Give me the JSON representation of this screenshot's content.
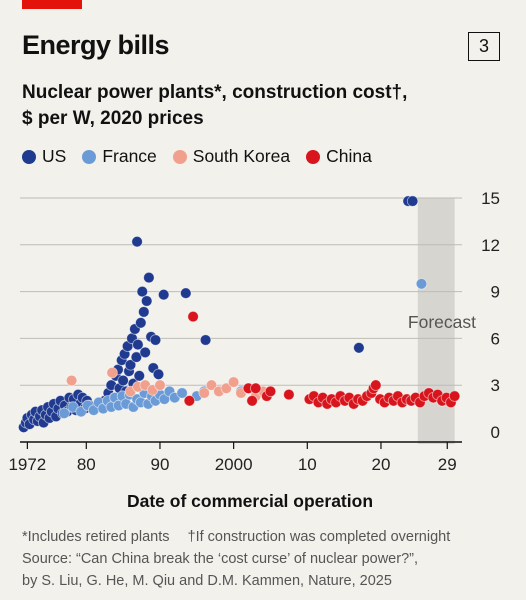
{
  "header": {
    "title": "Energy bills",
    "badge": "3",
    "subtitle_line1": "Nuclear power plants*, construction cost†,",
    "subtitle_line2": "$ per W, 2020 prices"
  },
  "colors": {
    "accent_red": "#e3120b",
    "US": "#1f3a8f",
    "France": "#6b9bd6",
    "South Korea": "#f0a08c",
    "China": "#d8151c",
    "forecast_band": "#d6d5d0"
  },
  "footer": {
    "note1": "*Includes retired plants",
    "note2": "†If construction was completed overnight",
    "source1": "Source: “Can China break the ‘cost curse’ of nuclear power?”,",
    "source2": "by S. Liu, G. He, M. Qiu and D.M. Kammen, Nature, 2025"
  },
  "chart_data": {
    "type": "scatter",
    "title": "Nuclear power plants*, construction cost†, $ per W, 2020 prices",
    "xlabel": "Date of commercial operation",
    "ylabel": "",
    "xlim": [
      1971,
      2031
    ],
    "ylim": [
      0,
      15
    ],
    "x_ticks": [
      1972,
      1980,
      1990,
      2000,
      2010,
      2020,
      2029
    ],
    "x_tick_labels": [
      "1972",
      "80",
      "90",
      "2000",
      "10",
      "20",
      "29"
    ],
    "y_ticks": [
      0,
      3,
      6,
      9,
      12,
      15
    ],
    "y_tick_labels": [
      "0",
      "3",
      "6",
      "9",
      "12",
      "15"
    ],
    "grid": "horizontal",
    "legend_position": "top",
    "annotations": [
      {
        "text": "Forecast",
        "x_range": [
          2025,
          2030
        ]
      }
    ],
    "series": [
      {
        "name": "US",
        "points": [
          [
            1971.5,
            0.3
          ],
          [
            1971.8,
            0.6
          ],
          [
            1972.0,
            0.9
          ],
          [
            1972.3,
            0.5
          ],
          [
            1972.6,
            1.1
          ],
          [
            1972.9,
            0.8
          ],
          [
            1973.1,
            1.3
          ],
          [
            1973.4,
            0.7
          ],
          [
            1973.7,
            1.0
          ],
          [
            1974.0,
            1.4
          ],
          [
            1974.2,
            0.6
          ],
          [
            1974.5,
            1.1
          ],
          [
            1974.8,
            1.6
          ],
          [
            1975.0,
            0.9
          ],
          [
            1975.3,
            1.3
          ],
          [
            1975.6,
            1.8
          ],
          [
            1975.9,
            1.0
          ],
          [
            1976.2,
            1.5
          ],
          [
            1976.5,
            2.0
          ],
          [
            1976.8,
            1.2
          ],
          [
            1977.1,
            1.7
          ],
          [
            1977.4,
            1.3
          ],
          [
            1977.7,
            2.2
          ],
          [
            1978.0,
            1.6
          ],
          [
            1978.3,
            2.1
          ],
          [
            1978.6,
            1.4
          ],
          [
            1978.9,
            2.4
          ],
          [
            1979.2,
            1.8
          ],
          [
            1979.5,
            2.2
          ],
          [
            1979.8,
            1.5
          ],
          [
            1980.1,
            2.0
          ],
          [
            1980.4,
            1.7
          ],
          [
            1982.5,
            2.0
          ],
          [
            1983.0,
            2.5
          ],
          [
            1983.4,
            3.0
          ],
          [
            1983.8,
            2.2
          ],
          [
            1984.0,
            3.6
          ],
          [
            1984.3,
            4.0
          ],
          [
            1984.5,
            2.8
          ],
          [
            1984.8,
            4.6
          ],
          [
            1985.0,
            3.3
          ],
          [
            1985.2,
            5.0
          ],
          [
            1985.4,
            2.6
          ],
          [
            1985.6,
            5.5
          ],
          [
            1985.8,
            3.9
          ],
          [
            1986.0,
            4.3
          ],
          [
            1986.2,
            6.0
          ],
          [
            1986.4,
            3.1
          ],
          [
            1986.6,
            6.6
          ],
          [
            1986.8,
            4.8
          ],
          [
            1987.0,
            5.6
          ],
          [
            1987.2,
            3.6
          ],
          [
            1987.4,
            7.0
          ],
          [
            1987.6,
            9.0
          ],
          [
            1987.8,
            7.7
          ],
          [
            1988.0,
            5.1
          ],
          [
            1988.2,
            8.4
          ],
          [
            1988.5,
            9.9
          ],
          [
            1988.8,
            6.1
          ],
          [
            1989.1,
            4.1
          ],
          [
            1989.4,
            5.9
          ],
          [
            1989.8,
            3.7
          ],
          [
            1986.9,
            12.2
          ],
          [
            1990.5,
            8.8
          ],
          [
            1993.5,
            8.9
          ],
          [
            1996.2,
            5.9
          ],
          [
            2017.0,
            5.4
          ],
          [
            2023.7,
            14.8
          ],
          [
            2024.3,
            14.8
          ]
        ]
      },
      {
        "name": "France",
        "points": [
          [
            1977.0,
            1.2
          ],
          [
            1978.2,
            1.6
          ],
          [
            1979.3,
            1.3
          ],
          [
            1980.2,
            1.7
          ],
          [
            1981.0,
            1.4
          ],
          [
            1981.7,
            1.9
          ],
          [
            1982.3,
            1.5
          ],
          [
            1982.9,
            2.0
          ],
          [
            1983.4,
            1.6
          ],
          [
            1983.9,
            2.2
          ],
          [
            1984.4,
            1.7
          ],
          [
            1984.9,
            2.3
          ],
          [
            1985.4,
            1.8
          ],
          [
            1985.9,
            2.4
          ],
          [
            1986.4,
            1.6
          ],
          [
            1986.9,
            2.1
          ],
          [
            1987.4,
            1.9
          ],
          [
            1987.9,
            2.5
          ],
          [
            1988.4,
            1.8
          ],
          [
            1988.9,
            2.3
          ],
          [
            1989.4,
            2.0
          ],
          [
            1990.0,
            2.4
          ],
          [
            1990.6,
            2.1
          ],
          [
            1991.3,
            2.6
          ],
          [
            1992.0,
            2.2
          ],
          [
            1993.0,
            2.5
          ],
          [
            1995.0,
            2.3
          ],
          [
            1996.0,
            2.6
          ],
          [
            2001.0,
            2.6
          ],
          [
            2025.5,
            9.5
          ]
        ]
      },
      {
        "name": "South Korea",
        "points": [
          [
            1978.0,
            3.3
          ],
          [
            1983.5,
            3.8
          ],
          [
            1986.0,
            2.6
          ],
          [
            1987.0,
            2.9
          ],
          [
            1988.0,
            3.0
          ],
          [
            1989.0,
            2.7
          ],
          [
            1990.0,
            3.0
          ],
          [
            1996.0,
            2.5
          ],
          [
            1997.0,
            3.0
          ],
          [
            1998.0,
            2.6
          ],
          [
            1999.0,
            2.8
          ],
          [
            2000.0,
            3.2
          ],
          [
            2001.0,
            2.5
          ],
          [
            2002.0,
            2.8
          ],
          [
            2003.0,
            2.3
          ],
          [
            2004.0,
            2.6
          ]
        ]
      },
      {
        "name": "China",
        "points": [
          [
            1994.0,
            2.0
          ],
          [
            1994.5,
            7.4
          ],
          [
            2002.0,
            2.8
          ],
          [
            2002.5,
            2.0
          ],
          [
            2003.0,
            2.8
          ],
          [
            2004.5,
            2.3
          ],
          [
            2005.0,
            2.6
          ],
          [
            2007.5,
            2.4
          ],
          [
            2010.3,
            2.1
          ],
          [
            2010.9,
            2.3
          ],
          [
            2011.5,
            1.9
          ],
          [
            2012.1,
            2.2
          ],
          [
            2012.7,
            1.8
          ],
          [
            2013.3,
            2.1
          ],
          [
            2013.9,
            1.9
          ],
          [
            2014.5,
            2.3
          ],
          [
            2015.1,
            2.0
          ],
          [
            2015.7,
            2.2
          ],
          [
            2016.3,
            1.8
          ],
          [
            2016.9,
            2.1
          ],
          [
            2017.5,
            2.0
          ],
          [
            2018.1,
            2.3
          ],
          [
            2018.7,
            2.5
          ],
          [
            2019.0,
            2.8
          ],
          [
            2019.3,
            3.0
          ],
          [
            2019.9,
            2.1
          ],
          [
            2020.5,
            1.9
          ],
          [
            2021.1,
            2.2
          ],
          [
            2021.7,
            2.0
          ],
          [
            2022.3,
            2.3
          ],
          [
            2022.9,
            1.9
          ],
          [
            2023.5,
            2.1
          ],
          [
            2024.1,
            2.0
          ],
          [
            2024.7,
            2.2
          ],
          [
            2025.3,
            1.9
          ],
          [
            2025.9,
            2.3
          ],
          [
            2026.5,
            2.5
          ],
          [
            2027.1,
            2.2
          ],
          [
            2027.7,
            2.4
          ],
          [
            2028.3,
            2.0
          ],
          [
            2028.9,
            2.2
          ],
          [
            2029.5,
            1.9
          ],
          [
            2030.0,
            2.3
          ]
        ]
      }
    ]
  }
}
